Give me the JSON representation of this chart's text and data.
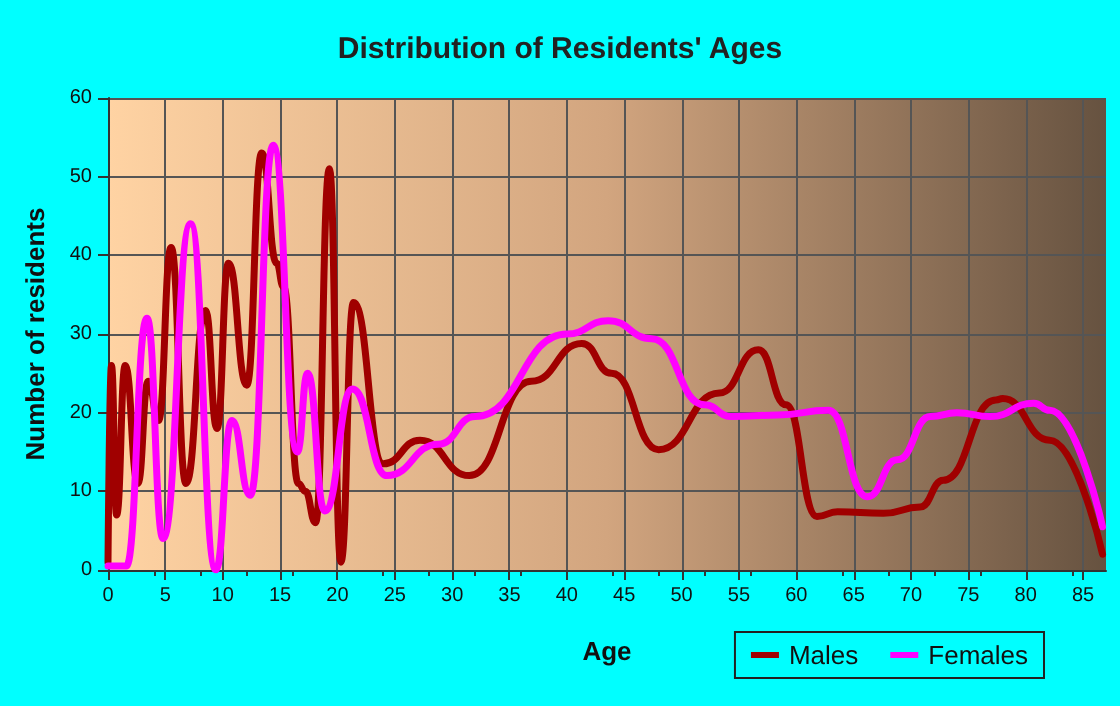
{
  "chart_data": {
    "type": "line",
    "title": "Distribution of Residents' Ages",
    "xlabel": "Age",
    "ylabel": "Number of residents",
    "xlim": [
      0,
      87
    ],
    "xticks": [
      0,
      5,
      10,
      15,
      20,
      25,
      30,
      35,
      40,
      45,
      50,
      55,
      60,
      65,
      70,
      75,
      80,
      85
    ],
    "ylim": [
      0,
      60
    ],
    "yticks": [
      0,
      10,
      20,
      30,
      40,
      50,
      60
    ],
    "grid": true,
    "legend": "bottom right",
    "marker": "none",
    "line_style": "solid",
    "series": [
      {
        "name": "Males",
        "color": "#a00000",
        "x": [
          0,
          0.3,
          0.75,
          1.5,
          2.6,
          3.5,
          4.4,
          5.5,
          6.8,
          8.5,
          9.5,
          10.5,
          12.1,
          13.4,
          14.7,
          15.3,
          16.6,
          17.2,
          18.1,
          19.3,
          20.3,
          21.4,
          24,
          27.2,
          31.5,
          36.9,
          41.3,
          43.9,
          48,
          53.3,
          56.7,
          59.1,
          61.8,
          63.6,
          67.6,
          70.8,
          72.8,
          77.4,
          78,
          82.1,
          86.7
        ],
        "values": [
          1,
          26,
          7,
          26,
          11,
          24,
          19,
          41,
          11,
          33,
          18,
          39,
          23.5,
          53,
          39,
          36,
          11,
          10,
          6,
          51,
          1,
          34,
          13.5,
          16.5,
          12,
          24,
          28.8,
          25,
          15.3,
          22.5,
          28,
          21,
          6.8,
          7.4,
          7.2,
          8,
          11.4,
          21.6,
          21.8,
          16.5,
          2
        ]
      },
      {
        "name": "Females",
        "color": "#ff00ff",
        "x": [
          0,
          1.6,
          3.4,
          4.8,
          7.2,
          9.4,
          10.8,
          12.4,
          14.4,
          16.5,
          17.4,
          18.9,
          21.3,
          24.3,
          28.8,
          32,
          40,
          43.6,
          47.4,
          52,
          54.3,
          58.4,
          62.8,
          66.2,
          68.8,
          71.7,
          74,
          76.9,
          80.7,
          82.1,
          86.7
        ],
        "values": [
          0.5,
          0.5,
          32,
          4,
          44,
          0,
          19,
          9.5,
          54,
          15,
          25,
          7.5,
          23,
          12,
          16,
          19.5,
          30,
          31.7,
          29.4,
          21,
          19.5,
          19.7,
          20.3,
          9.3,
          14,
          19.5,
          20,
          19.5,
          21.2,
          20.3,
          5.5
        ]
      }
    ]
  }
}
